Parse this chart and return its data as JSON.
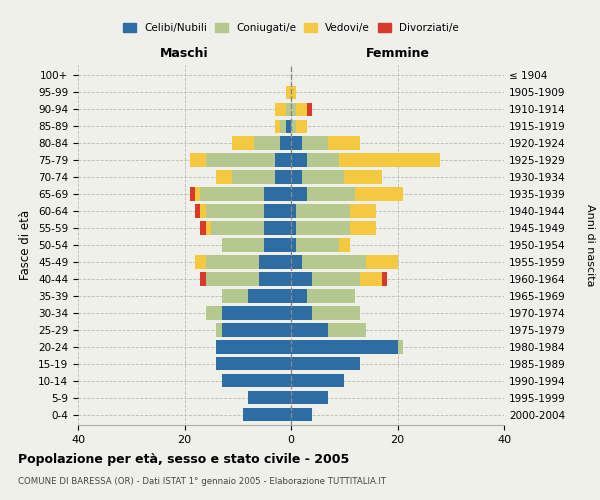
{
  "age_groups": [
    "0-4",
    "5-9",
    "10-14",
    "15-19",
    "20-24",
    "25-29",
    "30-34",
    "35-39",
    "40-44",
    "45-49",
    "50-54",
    "55-59",
    "60-64",
    "65-69",
    "70-74",
    "75-79",
    "80-84",
    "85-89",
    "90-94",
    "95-99",
    "100+"
  ],
  "birth_years": [
    "2000-2004",
    "1995-1999",
    "1990-1994",
    "1985-1989",
    "1980-1984",
    "1975-1979",
    "1970-1974",
    "1965-1969",
    "1960-1964",
    "1955-1959",
    "1950-1954",
    "1945-1949",
    "1940-1944",
    "1935-1939",
    "1930-1934",
    "1925-1929",
    "1920-1924",
    "1915-1919",
    "1910-1914",
    "1905-1909",
    "≤ 1904"
  ],
  "maschi": {
    "celibi": [
      9,
      8,
      13,
      14,
      14,
      13,
      13,
      8,
      6,
      6,
      5,
      5,
      5,
      5,
      3,
      3,
      2,
      1,
      0,
      0,
      0
    ],
    "coniugati": [
      0,
      0,
      0,
      0,
      0,
      1,
      3,
      5,
      10,
      10,
      8,
      10,
      11,
      12,
      8,
      13,
      5,
      1,
      1,
      0,
      0
    ],
    "vedovi": [
      0,
      0,
      0,
      0,
      0,
      0,
      0,
      0,
      0,
      2,
      0,
      1,
      1,
      1,
      3,
      3,
      4,
      1,
      2,
      1,
      0
    ],
    "divorziati": [
      0,
      0,
      0,
      0,
      0,
      0,
      0,
      0,
      1,
      0,
      0,
      1,
      1,
      1,
      0,
      0,
      0,
      0,
      0,
      0,
      0
    ]
  },
  "femmine": {
    "nubili": [
      4,
      7,
      10,
      13,
      20,
      7,
      4,
      3,
      4,
      2,
      1,
      1,
      1,
      3,
      2,
      3,
      2,
      0,
      0,
      0,
      0
    ],
    "coniugate": [
      0,
      0,
      0,
      0,
      1,
      7,
      9,
      9,
      9,
      12,
      8,
      10,
      10,
      9,
      8,
      6,
      5,
      1,
      1,
      0,
      0
    ],
    "vedove": [
      0,
      0,
      0,
      0,
      0,
      0,
      0,
      0,
      4,
      6,
      2,
      5,
      5,
      9,
      7,
      19,
      6,
      2,
      2,
      1,
      0
    ],
    "divorziate": [
      0,
      0,
      0,
      0,
      0,
      0,
      0,
      0,
      1,
      0,
      0,
      0,
      0,
      0,
      0,
      0,
      0,
      0,
      1,
      0,
      0
    ]
  },
  "colors": {
    "celibi": "#2e6da4",
    "coniugati": "#b5c98e",
    "vedovi": "#f5c842",
    "divorziati": "#d9392b"
  },
  "xlim": 40,
  "title": "Popolazione per età, sesso e stato civile - 2005",
  "subtitle": "COMUNE DI BARESSA (OR) - Dati ISTAT 1° gennaio 2005 - Elaborazione TUTTITALIA.IT",
  "ylabel_left": "Fasce di età",
  "ylabel_right": "Anni di nascita",
  "xlabel_maschi": "Maschi",
  "xlabel_femmine": "Femmine",
  "legend_labels": [
    "Celibi/Nubili",
    "Coniugati/e",
    "Vedovi/e",
    "Divorziati/e"
  ]
}
